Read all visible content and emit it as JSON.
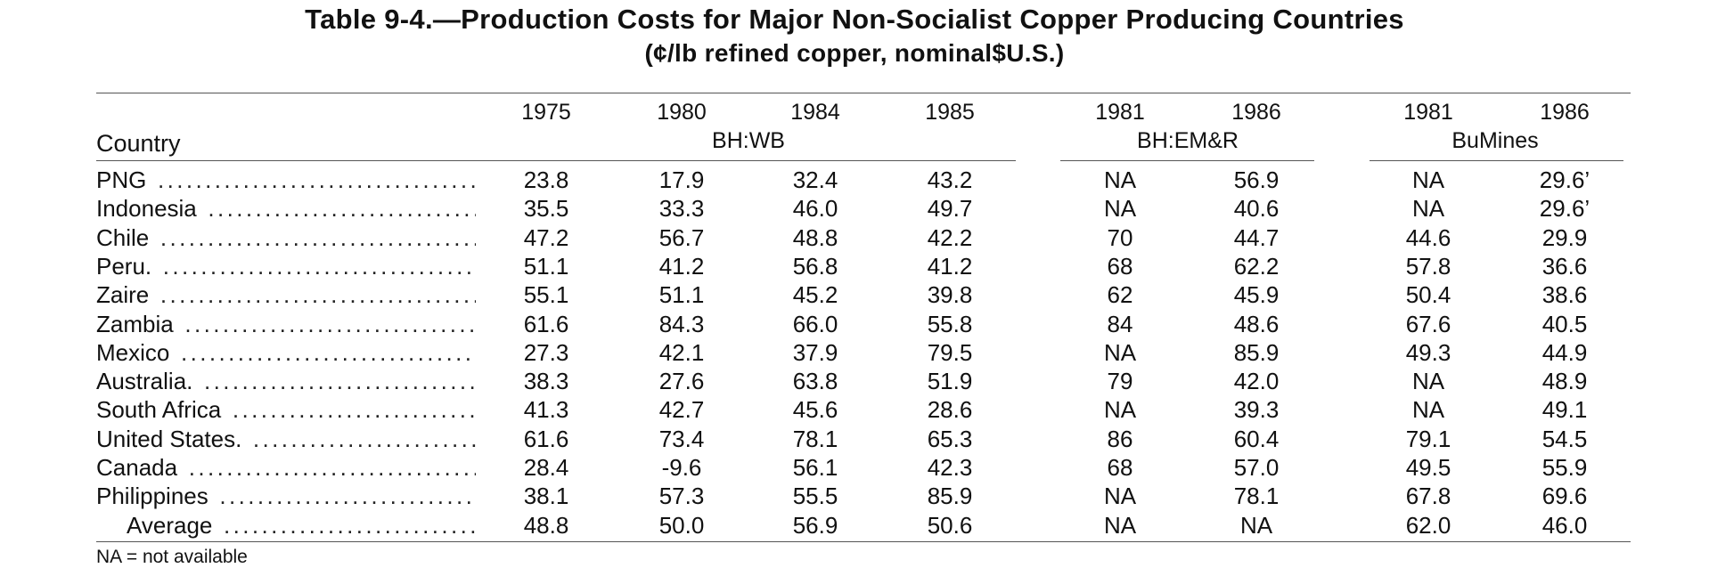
{
  "table": {
    "title": "Table 9-4.—Production Costs for Major Non-Socialist Copper Producing Countries",
    "subtitle": "(¢/lb refined copper, nominal$U.S.)",
    "country_header": "Country",
    "groups": [
      {
        "label": "BH:WB",
        "years": [
          "1975",
          "1980",
          "1984",
          "1985"
        ]
      },
      {
        "label": "BH:EM&R",
        "years": [
          "1981",
          "1986"
        ]
      },
      {
        "label": "BuMines",
        "years": [
          "1981",
          "1986"
        ]
      }
    ],
    "rows": [
      {
        "country": "PNG",
        "values": [
          "23.8",
          "17.9",
          "32.4",
          "43.2",
          "NA",
          "56.9",
          "NA",
          "29.6’"
        ]
      },
      {
        "country": "Indonesia",
        "values": [
          "35.5",
          "33.3",
          "46.0",
          "49.7",
          "NA",
          "40.6",
          "NA",
          "29.6’"
        ]
      },
      {
        "country": "Chile",
        "values": [
          "47.2",
          "56.7",
          "48.8",
          "42.2",
          "70",
          "44.7",
          "44.6",
          "29.9"
        ]
      },
      {
        "country": "Peru.",
        "values": [
          "51.1",
          "41.2",
          "56.8",
          "41.2",
          "68",
          "62.2",
          "57.8",
          "36.6"
        ]
      },
      {
        "country": "Zaire",
        "values": [
          "55.1",
          "51.1",
          "45.2",
          "39.8",
          "62",
          "45.9",
          "50.4",
          "38.6"
        ]
      },
      {
        "country": "Zambia",
        "values": [
          "61.6",
          "84.3",
          "66.0",
          "55.8",
          "84",
          "48.6",
          "67.6",
          "40.5"
        ]
      },
      {
        "country": "Mexico",
        "values": [
          "27.3",
          "42.1",
          "37.9",
          "79.5",
          "NA",
          "85.9",
          "49.3",
          "44.9"
        ]
      },
      {
        "country": "Australia.",
        "values": [
          "38.3",
          "27.6",
          "63.8",
          "51.9",
          "79",
          "42.0",
          "NA",
          "48.9"
        ]
      },
      {
        "country": "South Africa",
        "values": [
          "41.3",
          "42.7",
          "45.6",
          "28.6",
          "NA",
          "39.3",
          "NA",
          "49.1"
        ]
      },
      {
        "country": "United States.",
        "values": [
          "61.6",
          "73.4",
          "78.1",
          "65.3",
          "86",
          "60.4",
          "79.1",
          "54.5"
        ]
      },
      {
        "country": "Canada",
        "values": [
          "28.4",
          "-9.6",
          "56.1",
          "42.3",
          "68",
          "57.0",
          "49.5",
          "55.9"
        ]
      },
      {
        "country": "Philippines",
        "values": [
          "38.1",
          "57.3",
          "55.5",
          "85.9",
          "NA",
          "78.1",
          "67.8",
          "69.6"
        ]
      },
      {
        "country": "Average",
        "values": [
          "48.8",
          "50.0",
          "56.9",
          "50.6",
          "NA",
          "NA",
          "62.0",
          "46.0"
        ]
      }
    ],
    "footnote": "NA = not available"
  }
}
